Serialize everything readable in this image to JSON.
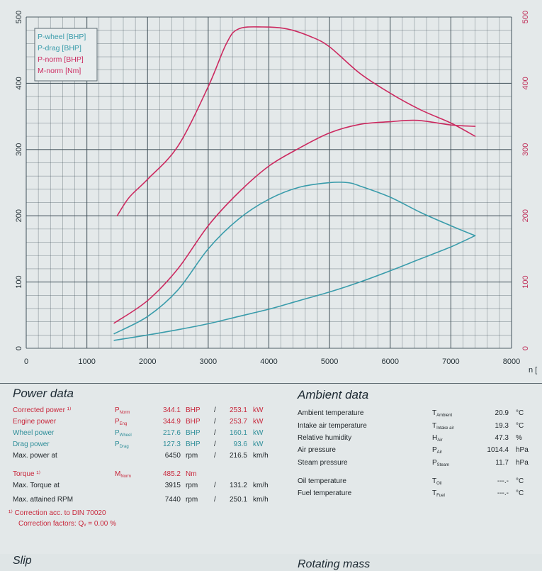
{
  "colors": {
    "grid": "#3f4f58",
    "p_wheel": "#3a9cab",
    "p_drag": "#3a9cab",
    "p_norm": "#cc2a60",
    "m_norm": "#cc2a60",
    "axis_left": "#263238",
    "axis_right": "#c0305a"
  },
  "chart_data": {
    "type": "line",
    "title": "",
    "xlabel": "n [",
    "ylabel": "",
    "xlim": [
      0,
      8000
    ],
    "ylim_left": [
      0,
      500
    ],
    "ylim_right": [
      0,
      500
    ],
    "x_ticks": [
      "0",
      "1000",
      "2000",
      "3000",
      "4000",
      "5000",
      "6000",
      "7000",
      "8000"
    ],
    "y_ticks_left": [
      "0",
      "100",
      "200",
      "300",
      "400",
      "500"
    ],
    "y_ticks_right": [
      "0",
      "100",
      "200",
      "300",
      "400",
      "500"
    ],
    "grid": true,
    "legend": "top-left",
    "legend_entries": [
      "P-wheel [BHP]",
      "P-drag [BHP]",
      "P-norm [BHP]",
      "M-norm [Nm]"
    ],
    "series": [
      {
        "name": "P-wheel [BHP]",
        "axis": "left",
        "x": [
          1450,
          2000,
          2500,
          3000,
          3500,
          4000,
          4500,
          5000,
          5300,
          5500,
          6000,
          6500,
          7000,
          7400
        ],
        "y": [
          22,
          48,
          88,
          150,
          195,
          225,
          243,
          250,
          250,
          245,
          228,
          205,
          185,
          170
        ]
      },
      {
        "name": "P-drag [BHP]",
        "axis": "left",
        "x": [
          1450,
          2000,
          2500,
          3000,
          3500,
          4000,
          4500,
          5000,
          5500,
          6000,
          6500,
          7000,
          7400
        ],
        "y": [
          12,
          20,
          28,
          37,
          48,
          59,
          72,
          85,
          100,
          117,
          135,
          153,
          170
        ]
      },
      {
        "name": "P-norm [BHP]",
        "axis": "left",
        "x": [
          1450,
          2000,
          2500,
          3000,
          3500,
          4000,
          4500,
          5000,
          5500,
          6000,
          6450,
          7000,
          7400
        ],
        "y": [
          38,
          72,
          120,
          185,
          235,
          275,
          302,
          325,
          338,
          342,
          344,
          337,
          335
        ]
      },
      {
        "name": "M-norm [Nm]",
        "axis": "right",
        "x": [
          1500,
          1700,
          2000,
          2500,
          3000,
          3300,
          3500,
          3900,
          4300,
          4700,
          5000,
          5500,
          6000,
          6500,
          7000,
          7400
        ],
        "y": [
          200,
          228,
          255,
          305,
          395,
          460,
          482,
          485,
          482,
          470,
          455,
          415,
          385,
          360,
          340,
          320
        ]
      }
    ]
  },
  "power": {
    "title": "Power data",
    "rows": [
      {
        "label": "Corrected power",
        "mark": "¹⁾",
        "sym": "P",
        "sub": "Norm",
        "val": "344.1",
        "u1": "BHP",
        "sep": "/",
        "val2": "253.1",
        "u2": "kW",
        "color": "red"
      },
      {
        "label": "Engine power",
        "mark": "",
        "sym": "P",
        "sub": "Eng",
        "val": "344.9",
        "u1": "BHP",
        "sep": "/",
        "val2": "253.7",
        "u2": "kW",
        "color": "red"
      },
      {
        "label": "Wheel power",
        "mark": "",
        "sym": "P",
        "sub": "Wheel",
        "val": "217.6",
        "u1": "BHP",
        "sep": "/",
        "val2": "160.1",
        "u2": "kW",
        "color": "teal"
      },
      {
        "label": "Drag power",
        "mark": "",
        "sym": "P",
        "sub": "Drag",
        "val": "127.3",
        "u1": "BHP",
        "sep": "/",
        "val2": "93.6",
        "u2": "kW",
        "color": "teal"
      },
      {
        "label": "Max. power at",
        "mark": "",
        "sym": "",
        "sub": "",
        "val": "6450",
        "u1": "rpm",
        "sep": "/",
        "val2": "216.5",
        "u2": "km/h",
        "color": ""
      },
      {
        "label": "Torque",
        "mark": "¹⁾",
        "sym": "M",
        "sub": "Norm",
        "val": "485.2",
        "u1": "Nm",
        "sep": "",
        "val2": "",
        "u2": "",
        "color": "red"
      },
      {
        "label": "Max. Torque at",
        "mark": "",
        "sym": "",
        "sub": "",
        "val": "3915",
        "u1": "rpm",
        "sep": "/",
        "val2": "131.2",
        "u2": "km/h",
        "color": ""
      },
      {
        "label": "Max. attained RPM",
        "mark": "",
        "sym": "",
        "sub": "",
        "val": "7440",
        "u1": "rpm",
        "sep": "/",
        "val2": "250.1",
        "u2": "km/h",
        "color": ""
      }
    ],
    "footnote1": "¹⁾ Correction acc. to DIN 70020",
    "footnote2": "Correction factors: Qᵥ =   0.00 %"
  },
  "ambient": {
    "title": "Ambient data",
    "rows": [
      {
        "label": "Ambient temperature",
        "sym": "T",
        "sub": "Ambient",
        "val": "20.9",
        "unit": "°C"
      },
      {
        "label": "Intake air temperature",
        "sym": "T",
        "sub": "Intake air",
        "val": "19.3",
        "unit": "°C"
      },
      {
        "label": "Relative humidity",
        "sym": "H",
        "sub": "Air",
        "val": "47.3",
        "unit": "%"
      },
      {
        "label": "Air pressure",
        "sym": "P",
        "sub": "Air",
        "val": "1014.4",
        "unit": "hPa"
      },
      {
        "label": "Steam pressure",
        "sym": "P",
        "sub": "Steam",
        "val": "11.7",
        "unit": "hPa"
      },
      {
        "label": "Oil temperature",
        "sym": "T",
        "sub": "Oil",
        "val": "---.-",
        "unit": "°C"
      },
      {
        "label": "Fuel temperature",
        "sym": "T",
        "sub": "Fuel",
        "val": "---.-",
        "unit": "°C"
      }
    ]
  },
  "slip": {
    "title": "Slip"
  },
  "rotating": {
    "title": "Rotating mass"
  }
}
